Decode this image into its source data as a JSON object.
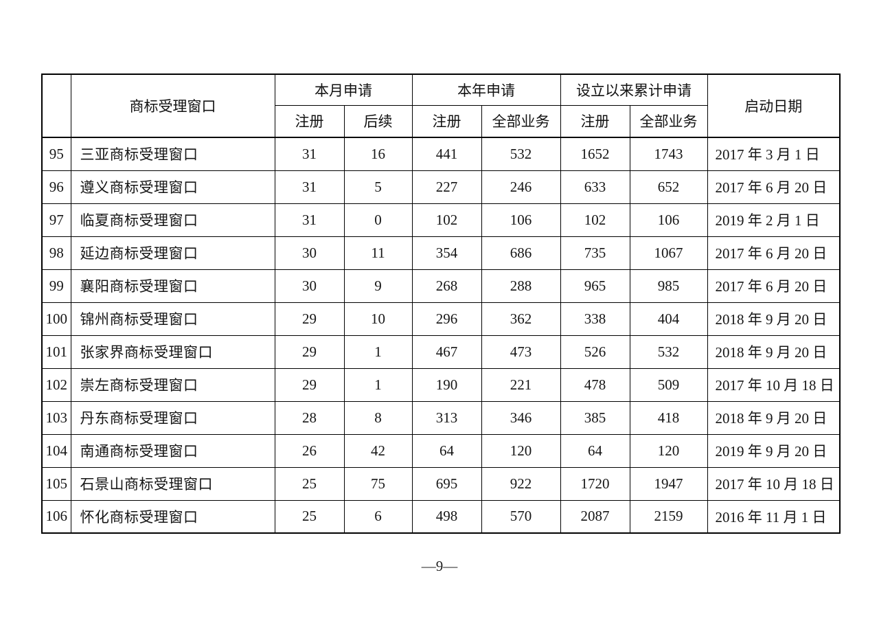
{
  "page": {
    "footer": "—9—"
  },
  "table": {
    "header": {
      "index_col": "",
      "name_col": "商标受理窗口",
      "groups": [
        {
          "label": "本月申请",
          "sub": [
            "注册",
            "后续"
          ]
        },
        {
          "label": "本年申请",
          "sub": [
            "注册",
            "全部业务"
          ]
        },
        {
          "label": "设立以来累计申请",
          "sub": [
            "注册",
            "全部业务"
          ]
        }
      ],
      "date_col": "启动日期"
    },
    "rows": [
      {
        "no": "95",
        "name": "三亚商标受理窗口",
        "month_reg": "31",
        "month_follow": "16",
        "year_reg": "441",
        "year_all": "532",
        "total_reg": "1652",
        "total_all": "1743",
        "date": "2017 年 3 月 1 日"
      },
      {
        "no": "96",
        "name": "遵义商标受理窗口",
        "month_reg": "31",
        "month_follow": "5",
        "year_reg": "227",
        "year_all": "246",
        "total_reg": "633",
        "total_all": "652",
        "date": "2017 年 6 月 20 日"
      },
      {
        "no": "97",
        "name": "临夏商标受理窗口",
        "month_reg": "31",
        "month_follow": "0",
        "year_reg": "102",
        "year_all": "106",
        "total_reg": "102",
        "total_all": "106",
        "date": "2019 年 2 月 1 日"
      },
      {
        "no": "98",
        "name": "延边商标受理窗口",
        "month_reg": "30",
        "month_follow": "11",
        "year_reg": "354",
        "year_all": "686",
        "total_reg": "735",
        "total_all": "1067",
        "date": "2017 年 6 月 20 日"
      },
      {
        "no": "99",
        "name": "襄阳商标受理窗口",
        "month_reg": "30",
        "month_follow": "9",
        "year_reg": "268",
        "year_all": "288",
        "total_reg": "965",
        "total_all": "985",
        "date": "2017 年 6 月 20 日"
      },
      {
        "no": "100",
        "name": "锦州商标受理窗口",
        "month_reg": "29",
        "month_follow": "10",
        "year_reg": "296",
        "year_all": "362",
        "total_reg": "338",
        "total_all": "404",
        "date": "2018 年 9 月 20 日"
      },
      {
        "no": "101",
        "name": "张家界商标受理窗口",
        "month_reg": "29",
        "month_follow": "1",
        "year_reg": "467",
        "year_all": "473",
        "total_reg": "526",
        "total_all": "532",
        "date": "2018 年 9 月 20 日"
      },
      {
        "no": "102",
        "name": "崇左商标受理窗口",
        "month_reg": "29",
        "month_follow": "1",
        "year_reg": "190",
        "year_all": "221",
        "total_reg": "478",
        "total_all": "509",
        "date": "2017 年 10 月 18 日"
      },
      {
        "no": "103",
        "name": "丹东商标受理窗口",
        "month_reg": "28",
        "month_follow": "8",
        "year_reg": "313",
        "year_all": "346",
        "total_reg": "385",
        "total_all": "418",
        "date": "2018 年 9 月 20 日"
      },
      {
        "no": "104",
        "name": "南通商标受理窗口",
        "month_reg": "26",
        "month_follow": "42",
        "year_reg": "64",
        "year_all": "120",
        "total_reg": "64",
        "total_all": "120",
        "date": "2019 年 9 月 20 日"
      },
      {
        "no": "105",
        "name": "石景山商标受理窗口",
        "month_reg": "25",
        "month_follow": "75",
        "year_reg": "695",
        "year_all": "922",
        "total_reg": "1720",
        "total_all": "1947",
        "date": "2017 年 10 月 18 日"
      },
      {
        "no": "106",
        "name": "怀化商标受理窗口",
        "month_reg": "25",
        "month_follow": "6",
        "year_reg": "498",
        "year_all": "570",
        "total_reg": "2087",
        "total_all": "2159",
        "date": "2016 年 11 月 1 日"
      }
    ]
  }
}
